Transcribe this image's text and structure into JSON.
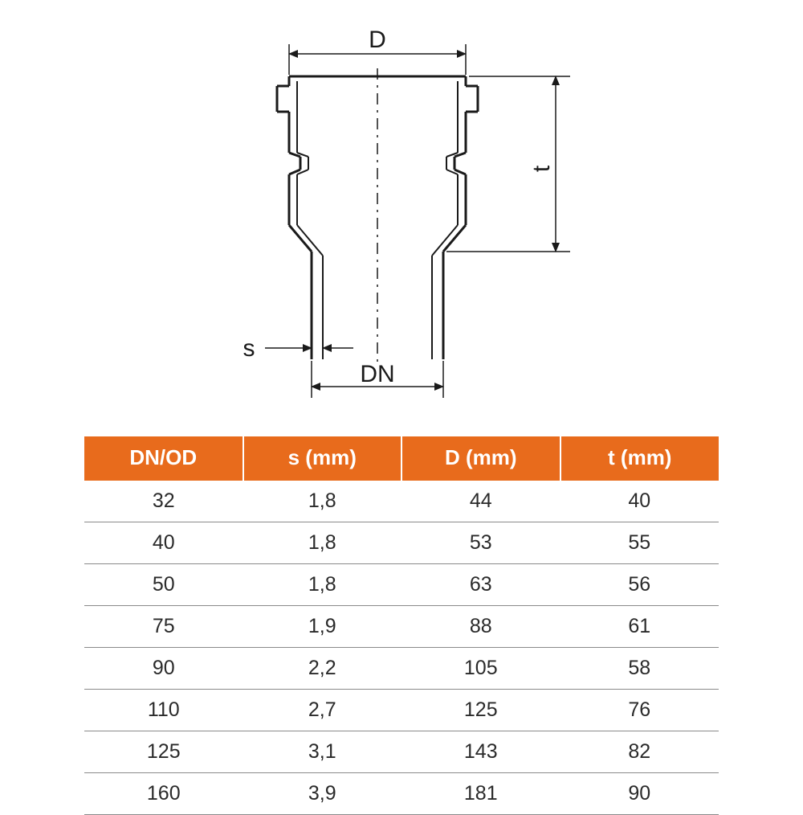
{
  "diagram": {
    "labels": {
      "D": "D",
      "t": "t",
      "s": "s",
      "DN": "DN"
    },
    "stroke": "#1a1a1a",
    "centerline_dash": "12 6 3 6",
    "label_fontsize": 30
  },
  "table": {
    "header_bg": "#e86b1c",
    "header_fg": "#ffffff",
    "row_border": "#8a8a8a",
    "cell_fg": "#2a2a2a",
    "header_fontsize": 26,
    "cell_fontsize": 25,
    "columns": [
      "DN/OD",
      "s (mm)",
      "D (mm)",
      "t (mm)"
    ],
    "rows": [
      [
        "32",
        "1,8",
        "44",
        "40"
      ],
      [
        "40",
        "1,8",
        "53",
        "55"
      ],
      [
        "50",
        "1,8",
        "63",
        "56"
      ],
      [
        "75",
        "1,9",
        "88",
        "61"
      ],
      [
        "90",
        "2,2",
        "105",
        "58"
      ],
      [
        "110",
        "2,7",
        "125",
        "76"
      ],
      [
        "125",
        "3,1",
        "143",
        "82"
      ],
      [
        "160",
        "3,9",
        "181",
        "90"
      ]
    ]
  }
}
